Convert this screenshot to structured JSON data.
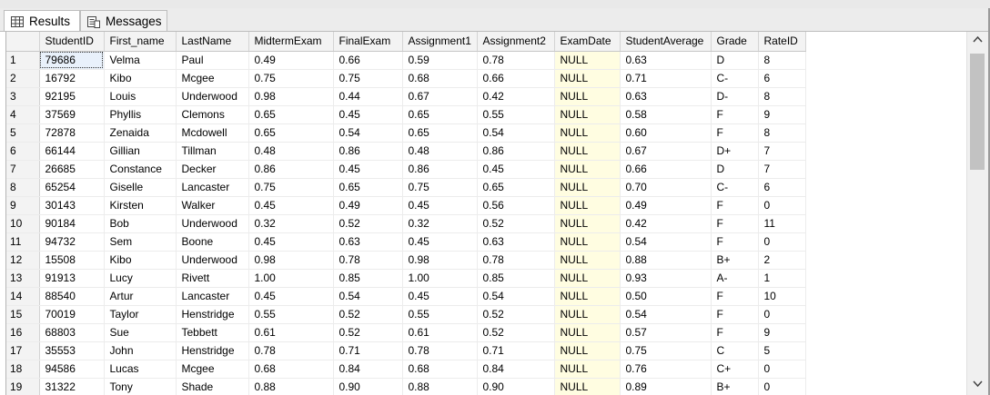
{
  "tabs": [
    {
      "label": "Results",
      "icon": "grid-icon"
    },
    {
      "label": "Messages",
      "icon": "messages-icon"
    }
  ],
  "columns": [
    "StudentID",
    "First_name",
    "LastName",
    "MidtermExam",
    "FinalExam",
    "Assignment1",
    "Assignment2",
    "ExamDate",
    "StudentAverage",
    "Grade",
    "RateID"
  ],
  "rows": [
    [
      "1",
      "79686",
      "Velma",
      "Paul",
      "0.49",
      "0.66",
      "0.59",
      "0.78",
      "NULL",
      "0.63",
      "D",
      "8"
    ],
    [
      "2",
      "16792",
      "Kibo",
      "Mcgee",
      "0.75",
      "0.75",
      "0.68",
      "0.66",
      "NULL",
      "0.71",
      "C-",
      "6"
    ],
    [
      "3",
      "92195",
      "Louis",
      "Underwood",
      "0.98",
      "0.44",
      "0.67",
      "0.42",
      "NULL",
      "0.63",
      "D-",
      "8"
    ],
    [
      "4",
      "37569",
      "Phyllis",
      "Clemons",
      "0.65",
      "0.45",
      "0.65",
      "0.55",
      "NULL",
      "0.58",
      "F",
      "9"
    ],
    [
      "5",
      "72878",
      "Zenaida",
      "Mcdowell",
      "0.65",
      "0.54",
      "0.65",
      "0.54",
      "NULL",
      "0.60",
      "F",
      "8"
    ],
    [
      "6",
      "66144",
      "Gillian",
      "Tillman",
      "0.48",
      "0.86",
      "0.48",
      "0.86",
      "NULL",
      "0.67",
      "D+",
      "7"
    ],
    [
      "7",
      "26685",
      "Constance",
      "Decker",
      "0.86",
      "0.45",
      "0.86",
      "0.45",
      "NULL",
      "0.66",
      "D",
      "7"
    ],
    [
      "8",
      "65254",
      "Giselle",
      "Lancaster",
      "0.75",
      "0.65",
      "0.75",
      "0.65",
      "NULL",
      "0.70",
      "C-",
      "6"
    ],
    [
      "9",
      "30143",
      "Kirsten",
      "Walker",
      "0.45",
      "0.49",
      "0.45",
      "0.56",
      "NULL",
      "0.49",
      "F",
      "0"
    ],
    [
      "10",
      "90184",
      "Bob",
      "Underwood",
      "0.32",
      "0.52",
      "0.32",
      "0.52",
      "NULL",
      "0.42",
      "F",
      "11"
    ],
    [
      "11",
      "94732",
      "Sem",
      "Boone",
      "0.45",
      "0.63",
      "0.45",
      "0.63",
      "NULL",
      "0.54",
      "F",
      "0"
    ],
    [
      "12",
      "15508",
      "Kibo",
      "Underwood",
      "0.98",
      "0.78",
      "0.98",
      "0.78",
      "NULL",
      "0.88",
      "B+",
      "2"
    ],
    [
      "13",
      "91913",
      "Lucy",
      "Rivett",
      "1.00",
      "0.85",
      "1.00",
      "0.85",
      "NULL",
      "0.93",
      "A-",
      "1"
    ],
    [
      "14",
      "88540",
      "Artur",
      "Lancaster",
      "0.45",
      "0.54",
      "0.45",
      "0.54",
      "NULL",
      "0.50",
      "F",
      "10"
    ],
    [
      "15",
      "70019",
      "Taylor",
      "Henstridge",
      "0.55",
      "0.52",
      "0.55",
      "0.52",
      "NULL",
      "0.54",
      "F",
      "0"
    ],
    [
      "16",
      "68803",
      "Sue",
      "Tebbett",
      "0.61",
      "0.52",
      "0.61",
      "0.52",
      "NULL",
      "0.57",
      "F",
      "9"
    ],
    [
      "17",
      "35553",
      "John",
      "Henstridge",
      "0.78",
      "0.71",
      "0.78",
      "0.71",
      "NULL",
      "0.75",
      "C",
      "5"
    ],
    [
      "18",
      "94586",
      "Lucas",
      "Mcgee",
      "0.68",
      "0.84",
      "0.68",
      "0.84",
      "NULL",
      "0.76",
      "C+",
      "0"
    ],
    [
      "19",
      "31322",
      "Tony",
      "Shade",
      "0.88",
      "0.90",
      "0.88",
      "0.90",
      "NULL",
      "0.89",
      "B+",
      "0"
    ]
  ],
  "colors": {
    "null_cell_bg": "#fffde1",
    "header_bg": "#f3f3f3",
    "selected_cell_bg": "#e9f1fb"
  },
  "scrollbar": {
    "up_icon": "chevron-up-icon",
    "down_icon": "chevron-down-icon"
  }
}
